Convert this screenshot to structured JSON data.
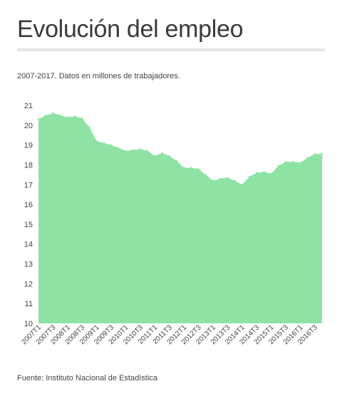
{
  "header": {
    "title": "Evolución del empleo",
    "subtitle": "2007-2017. Datos en millones de trabajadores."
  },
  "footer": {
    "source": "Fuente: Instituto Nacional de Estadística"
  },
  "chart_data": {
    "type": "area",
    "title": "Evolución del empleo",
    "subtitle": "2007-2017. Datos en millones de trabajadores.",
    "xlabel": "",
    "ylabel": "",
    "ylim": [
      10,
      21
    ],
    "yticks": [
      10,
      11,
      12,
      13,
      14,
      15,
      16,
      17,
      18,
      19,
      20,
      21
    ],
    "grid": false,
    "fill_color": "#8ee3a4",
    "x": [
      "2007T1",
      "2007T2",
      "2007T3",
      "2007T4",
      "2008T1",
      "2008T2",
      "2008T3",
      "2008T4",
      "2009T1",
      "2009T2",
      "2009T3",
      "2009T4",
      "2010T1",
      "2010T2",
      "2010T3",
      "2010T4",
      "2011T1",
      "2011T2",
      "2011T3",
      "2011T4",
      "2012T1",
      "2012T2",
      "2012T3",
      "2012T4",
      "2013T1",
      "2013T2",
      "2013T3",
      "2013T4",
      "2014T1",
      "2014T2",
      "2014T3",
      "2014T4",
      "2015T1",
      "2015T2",
      "2015T3",
      "2015T4",
      "2016T1",
      "2016T2",
      "2016T3",
      "2016T4"
    ],
    "xtick_labels": [
      "2007T1",
      "2007T3",
      "2008T1",
      "2008T3",
      "2009T1",
      "2009T3",
      "2010T1",
      "2010T3",
      "2011T1",
      "2011T3",
      "2012T1",
      "2012T3",
      "2013T1",
      "2013T3",
      "2014T1",
      "2014T3",
      "2015T1",
      "2015T3",
      "2016T1",
      "2016T3"
    ],
    "values": [
      20.3,
      20.5,
      20.6,
      20.5,
      20.4,
      20.45,
      20.35,
      19.9,
      19.2,
      19.1,
      19.0,
      18.85,
      18.7,
      18.75,
      18.8,
      18.7,
      18.45,
      18.6,
      18.45,
      18.2,
      17.85,
      17.85,
      17.8,
      17.5,
      17.2,
      17.3,
      17.35,
      17.2,
      17.0,
      17.4,
      17.6,
      17.65,
      17.55,
      17.95,
      18.15,
      18.15,
      18.1,
      18.35,
      18.55,
      18.55
    ]
  }
}
